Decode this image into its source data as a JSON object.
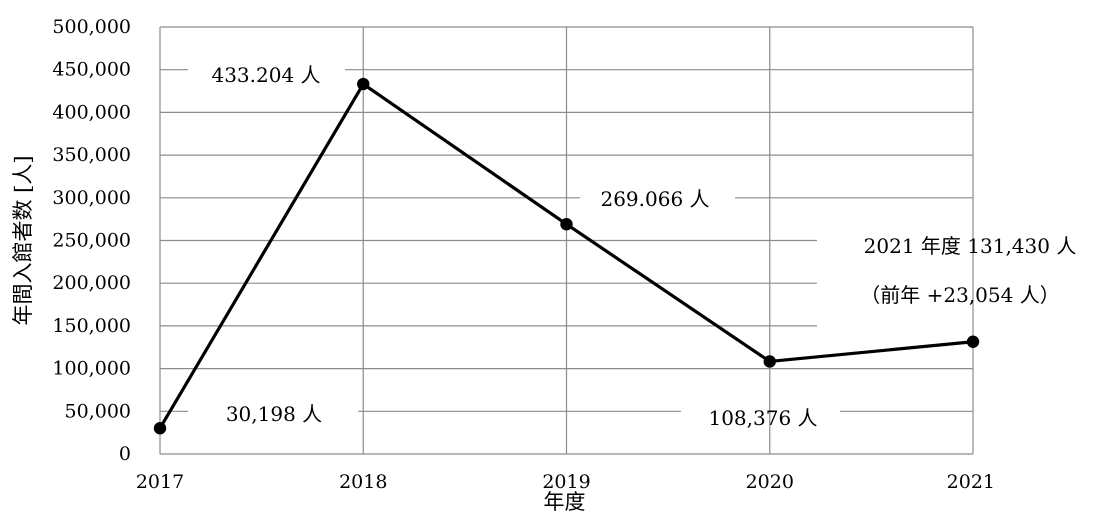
{
  "chart_data": {
    "type": "line",
    "title": "",
    "xlabel": "年度",
    "ylabel": "年間入館者数 [人]",
    "x": [
      "2017",
      "2018",
      "2019",
      "2020",
      "2021"
    ],
    "series": [
      {
        "values": [
          30198,
          433204,
          269066,
          108376,
          131430
        ]
      }
    ],
    "ylim": [
      0,
      500000
    ],
    "ytick_step": 50000,
    "y_tick_labels": [
      "0",
      "50,000",
      "100,000",
      "150,000",
      "200,000",
      "250,000",
      "300,000",
      "350,000",
      "400,000",
      "450,000",
      "500,000"
    ],
    "grid": true,
    "legend": "none",
    "line_color": "#000000",
    "annotations": [
      {
        "text": "30,198 人"
      },
      {
        "text": "433.204 人"
      },
      {
        "text": "269.066 人"
      },
      {
        "text": "108,376 人"
      },
      {
        "text": "2021 年度  131,430 人"
      },
      {
        "text": "（前年  +23,054 人）"
      }
    ]
  }
}
